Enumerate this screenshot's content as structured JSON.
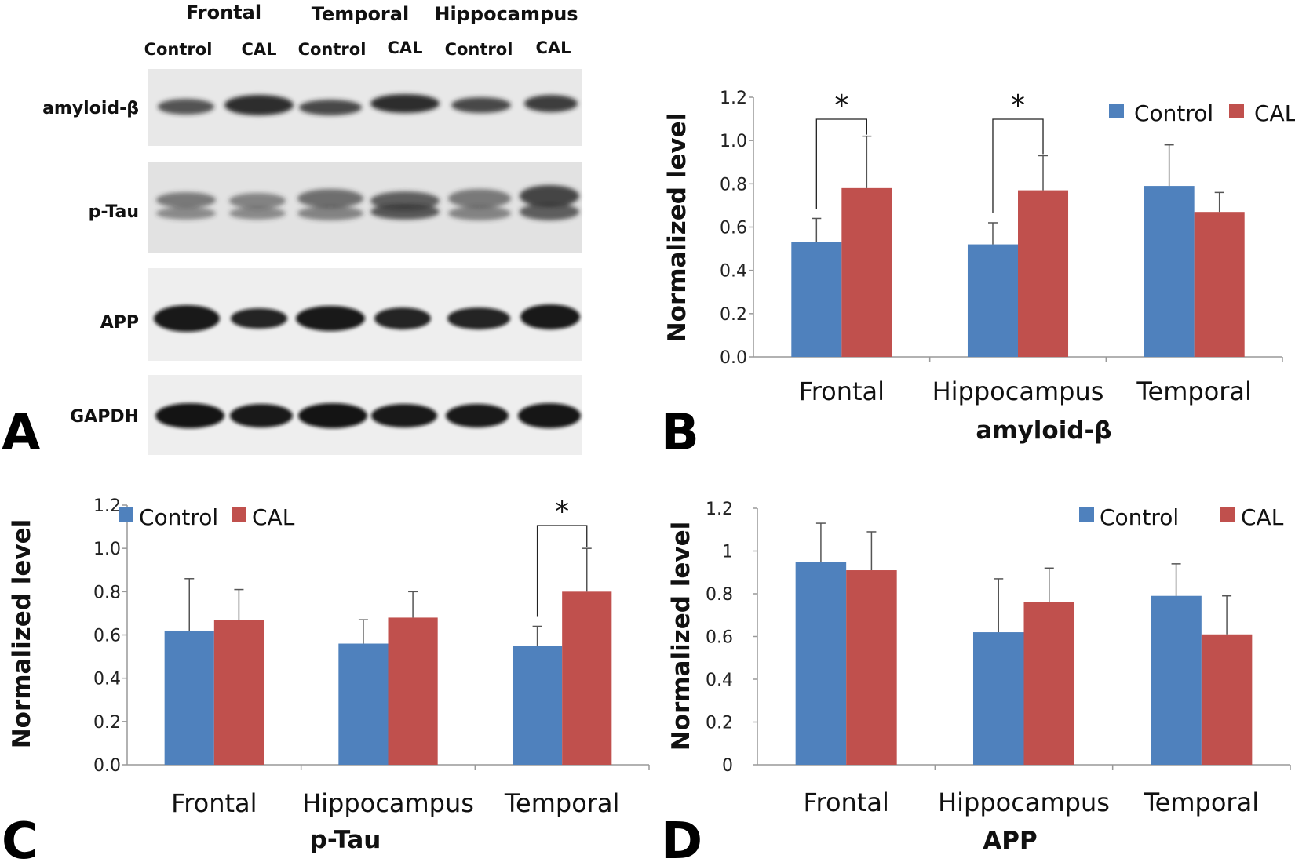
{
  "colors": {
    "control": "#4F81BD",
    "cal": "#C0504D",
    "axis": "#999999",
    "error": "#555555"
  },
  "blot": {
    "letter": "A",
    "regions": [
      "Frontal",
      "Temporal",
      "Hippocampus"
    ],
    "lanes": [
      "Control",
      "CAL",
      "Control",
      "CAL",
      "Control",
      "CAL"
    ],
    "proteins": [
      "amyloid-β",
      "p-Tau",
      "APP",
      "GAPDH"
    ]
  },
  "chart_data": [
    {
      "panel": "B",
      "type": "bar",
      "title": "amyloid-β",
      "ylabel": "Normalized level",
      "ylim": [
        0,
        1.2
      ],
      "yticks": [
        "0.0",
        "0.2",
        "0.4",
        "0.6",
        "0.8",
        "1.0",
        "1.2"
      ],
      "legend_position": "top-right",
      "categories": [
        "Frontal",
        "Hippocampus",
        "Temporal"
      ],
      "series": [
        {
          "name": "Control",
          "values": [
            0.53,
            0.52,
            0.79
          ],
          "errors": [
            0.11,
            0.1,
            0.19
          ]
        },
        {
          "name": "CAL",
          "values": [
            0.78,
            0.77,
            0.67
          ],
          "errors": [
            0.24,
            0.16,
            0.09
          ]
        }
      ],
      "significance": [
        {
          "category": "Frontal",
          "label": "*"
        },
        {
          "category": "Hippocampus",
          "label": "*"
        }
      ]
    },
    {
      "panel": "C",
      "type": "bar",
      "title": "p-Tau",
      "ylabel": "Normalized level",
      "ylim": [
        0,
        1.2
      ],
      "yticks": [
        "0.0",
        "0.2",
        "0.4",
        "0.6",
        "0.8",
        "1.0",
        "1.2"
      ],
      "legend_position": "top-left",
      "categories": [
        "Frontal",
        "Hippocampus",
        "Temporal"
      ],
      "series": [
        {
          "name": "Control",
          "values": [
            0.62,
            0.56,
            0.55
          ],
          "errors": [
            0.24,
            0.11,
            0.09
          ]
        },
        {
          "name": "CAL",
          "values": [
            0.67,
            0.68,
            0.8
          ],
          "errors": [
            0.14,
            0.12,
            0.2
          ]
        }
      ],
      "significance": [
        {
          "category": "Temporal",
          "label": "*"
        }
      ]
    },
    {
      "panel": "D",
      "type": "bar",
      "title": "APP",
      "ylabel": "Normalized level",
      "ylim": [
        0,
        1.2
      ],
      "yticks": [
        "0",
        "0.2",
        "0.4",
        "0.6",
        "0.8",
        "1",
        "1.2"
      ],
      "legend_position": "top-right",
      "categories": [
        "Frontal",
        "Hippocampus",
        "Temporal"
      ],
      "series": [
        {
          "name": "Control",
          "values": [
            0.95,
            0.62,
            0.79
          ],
          "errors": [
            0.18,
            0.25,
            0.15
          ]
        },
        {
          "name": "CAL",
          "values": [
            0.91,
            0.76,
            0.61
          ],
          "errors": [
            0.18,
            0.16,
            0.18
          ]
        }
      ],
      "significance": []
    }
  ]
}
